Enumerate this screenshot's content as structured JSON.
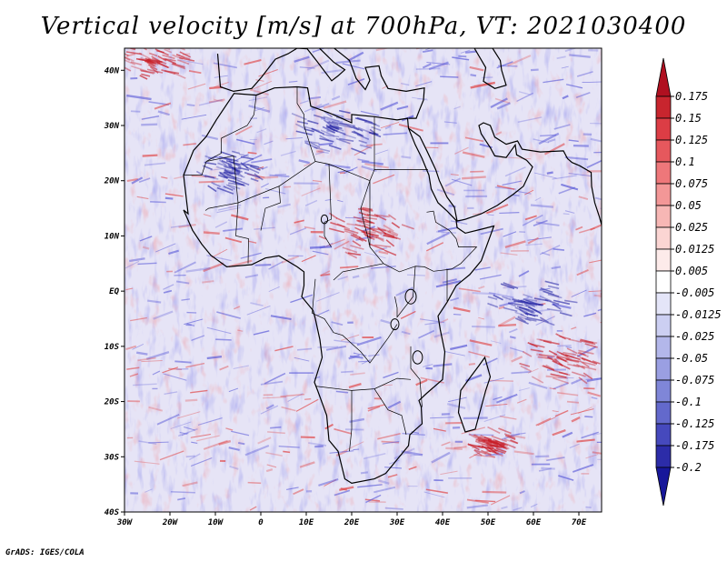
{
  "title": "Vertical velocity [m/s] at 700hPa, VT: 2021030400",
  "credit": "GrADS: IGES/COLA",
  "map": {
    "lon_labels": [
      "30W",
      "20W",
      "10W",
      "0",
      "10E",
      "20E",
      "30E",
      "40E",
      "50E",
      "60E",
      "70E"
    ],
    "lat_labels": [
      "40S",
      "30S",
      "20S",
      "10S",
      "EQ",
      "10N",
      "20N",
      "30N",
      "40N"
    ],
    "lon_range": [
      -30,
      75
    ],
    "lat_range": [
      -40,
      44
    ]
  },
  "colorbar": {
    "labels": [
      "0.175",
      "0.15",
      "0.125",
      "0.1",
      "0.075",
      "0.05",
      "0.025",
      "0.0125",
      "0.005",
      "-0.005",
      "-0.0125",
      "-0.025",
      "-0.05",
      "-0.075",
      "-0.1",
      "-0.125",
      "-0.175",
      "-0.2"
    ],
    "colors": [
      "#b01020",
      "#c8252e",
      "#dc3d45",
      "#e6585d",
      "#ee777a",
      "#f39797",
      "#f7b7b5",
      "#fbd5d3",
      "#fdebea",
      "#ffffff",
      "#e4e5f8",
      "#cccff2",
      "#b3b7ea",
      "#9a9fe2",
      "#7f86d8",
      "#6369cc",
      "#4649bd",
      "#2c2ca8",
      "#17179a"
    ]
  },
  "colors": {
    "warm": "#e04040",
    "cool": "#5a5ad8"
  }
}
